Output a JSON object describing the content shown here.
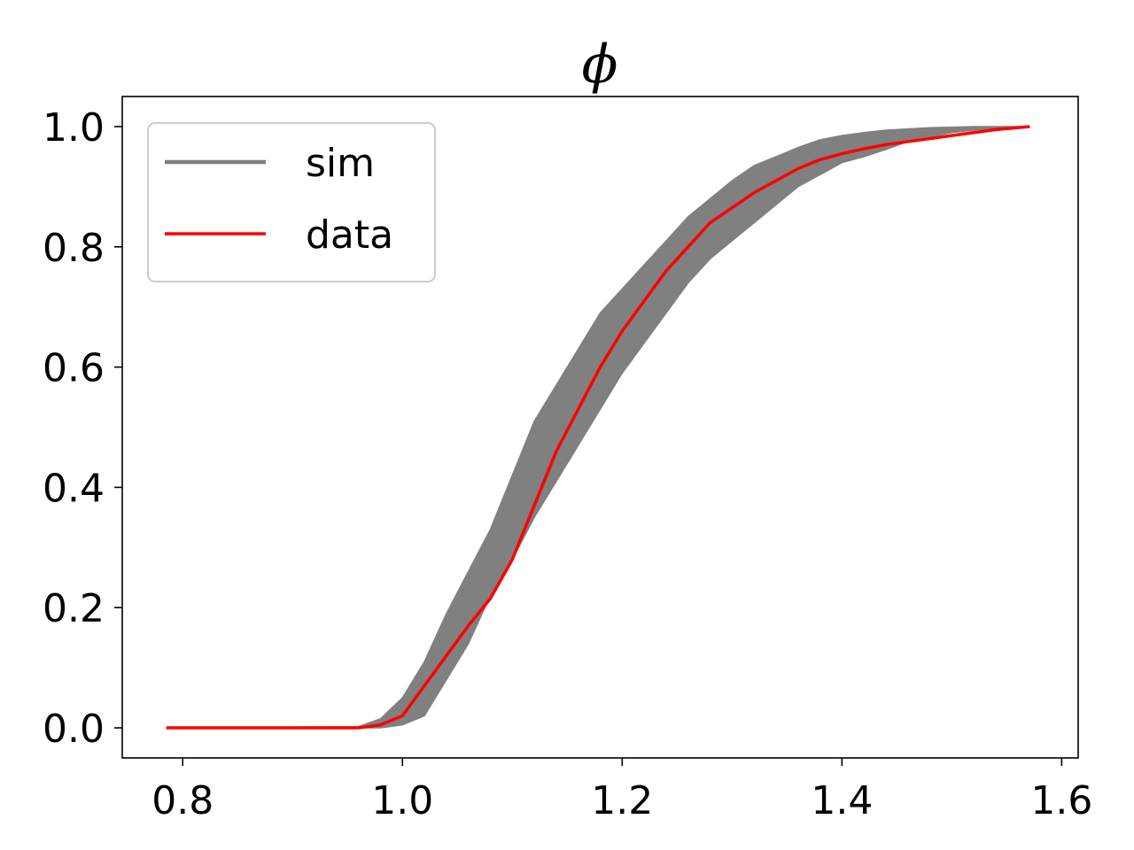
{
  "chart_data": {
    "type": "line",
    "title": "ϕ",
    "xlabel": "",
    "ylabel": "",
    "xlim": [
      0.745,
      1.615
    ],
    "ylim": [
      -0.05,
      1.05
    ],
    "xticks": [
      0.8,
      1.0,
      1.2,
      1.4,
      1.6
    ],
    "xtick_labels": [
      "0.8",
      "1.0",
      "1.2",
      "1.4",
      "1.6"
    ],
    "yticks": [
      0.0,
      0.2,
      0.4,
      0.6,
      0.8,
      1.0
    ],
    "ytick_labels": [
      "0.0",
      "0.2",
      "0.4",
      "0.6",
      "0.8",
      "1.0"
    ],
    "grid": false,
    "legend": {
      "position": "top-left",
      "entries": [
        "sim",
        "data"
      ]
    },
    "series": [
      {
        "name": "sim",
        "kind": "band",
        "color": "#808080",
        "x": [
          0.785,
          0.96,
          0.98,
          1.0,
          1.02,
          1.04,
          1.06,
          1.08,
          1.1,
          1.12,
          1.14,
          1.16,
          1.18,
          1.2,
          1.22,
          1.24,
          1.26,
          1.28,
          1.3,
          1.32,
          1.34,
          1.36,
          1.38,
          1.4,
          1.42,
          1.44,
          1.46,
          1.48,
          1.5,
          1.52,
          1.54,
          1.571
        ],
        "lower": [
          0.0,
          0.0,
          0.0,
          0.005,
          0.02,
          0.08,
          0.14,
          0.22,
          0.28,
          0.35,
          0.41,
          0.47,
          0.53,
          0.59,
          0.64,
          0.69,
          0.74,
          0.78,
          0.81,
          0.84,
          0.87,
          0.9,
          0.92,
          0.94,
          0.95,
          0.962,
          0.975,
          0.983,
          0.99,
          0.994,
          0.997,
          1.0
        ],
        "upper": [
          0.0,
          0.002,
          0.015,
          0.05,
          0.11,
          0.19,
          0.26,
          0.33,
          0.42,
          0.51,
          0.57,
          0.63,
          0.69,
          0.73,
          0.77,
          0.81,
          0.85,
          0.88,
          0.91,
          0.935,
          0.95,
          0.965,
          0.978,
          0.985,
          0.99,
          0.994,
          0.996,
          0.998,
          0.999,
          1.0,
          1.0,
          1.0
        ]
      },
      {
        "name": "data",
        "kind": "line",
        "color": "#ff0000",
        "x": [
          0.785,
          0.96,
          0.98,
          1.0,
          1.02,
          1.04,
          1.06,
          1.08,
          1.1,
          1.12,
          1.14,
          1.16,
          1.18,
          1.2,
          1.22,
          1.24,
          1.26,
          1.28,
          1.3,
          1.32,
          1.34,
          1.36,
          1.38,
          1.4,
          1.42,
          1.44,
          1.46,
          1.48,
          1.5,
          1.52,
          1.54,
          1.571
        ],
        "y": [
          0.0,
          0.0,
          0.005,
          0.02,
          0.07,
          0.12,
          0.17,
          0.215,
          0.28,
          0.37,
          0.46,
          0.53,
          0.6,
          0.66,
          0.71,
          0.76,
          0.8,
          0.84,
          0.865,
          0.89,
          0.91,
          0.93,
          0.945,
          0.955,
          0.963,
          0.97,
          0.975,
          0.98,
          0.985,
          0.99,
          0.995,
          1.0
        ]
      }
    ]
  }
}
